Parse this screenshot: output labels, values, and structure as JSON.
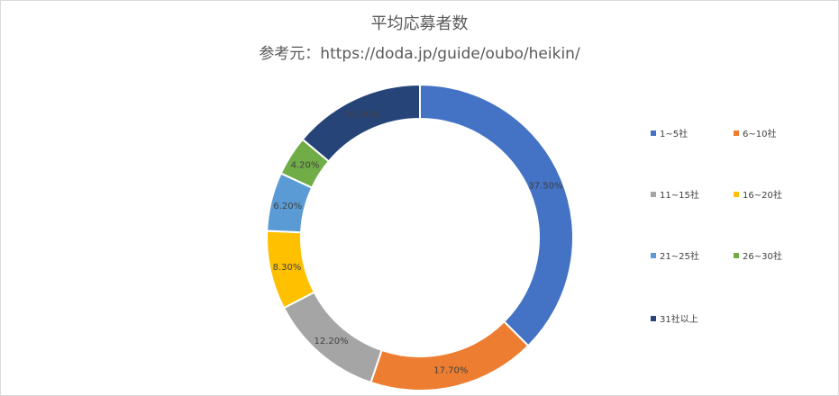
{
  "chart_data": {
    "type": "doughnut",
    "title": "平均応募者数",
    "subtitle": "参考元：https://doda.jp/guide/oubo/heikin/",
    "categories": [
      "1~5社",
      "6~10社",
      "11~15社",
      "16~20社",
      "21~25社",
      "26~30社",
      "31社以上"
    ],
    "values": [
      37.5,
      17.7,
      12.2,
      8.3,
      6.2,
      4.2,
      13.9
    ],
    "data_labels": [
      "37.50%",
      "17.70%",
      "12.20%",
      "8.30%",
      "6.20%",
      "4.20%",
      "13.90%"
    ],
    "colors": [
      "#4472C4",
      "#ED7D31",
      "#A5A5A5",
      "#FFC000",
      "#5B9BD5",
      "#70AD47",
      "#264478"
    ],
    "legend_position": "right"
  }
}
